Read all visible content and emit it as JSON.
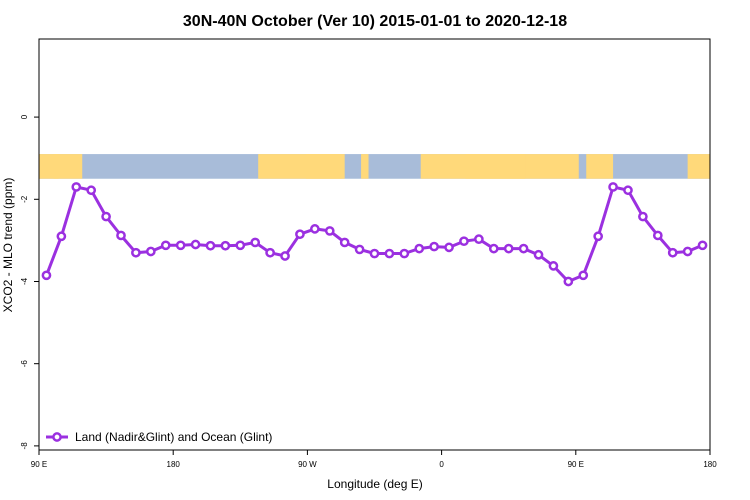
{
  "chart_data": {
    "type": "line",
    "title": "30N-40N October (Ver 10)   2015-01-01 to 2020-12-18",
    "xlabel": "Longitude (deg E)",
    "ylabel": "XCO2 - MLO trend (ppm)",
    "x_ticks": [
      {
        "value": 90,
        "label": "90 E"
      },
      {
        "value": 180,
        "label": "180"
      },
      {
        "value": 270,
        "label": "90 W"
      },
      {
        "value": 360,
        "label": "0"
      },
      {
        "value": 450,
        "label": "90 E"
      },
      {
        "value": 540,
        "label": "180"
      }
    ],
    "y_ticks": [
      0,
      -2,
      -4,
      -6,
      -8
    ],
    "xlim": [
      90,
      540
    ],
    "ylim": [
      -8.1,
      1.9
    ],
    "land_ocean_band": {
      "ymin": -1.5,
      "ymax": -0.9,
      "ocean_color": "#a8bcd9",
      "land_color": "#ffd97a",
      "land_segments": [
        [
          90,
          103
        ],
        [
          100,
          119
        ],
        [
          237,
          295
        ],
        [
          269,
          293
        ],
        [
          306,
          311
        ],
        [
          346,
          452
        ],
        [
          376,
          416
        ],
        [
          457,
          475
        ],
        [
          525,
          540
        ]
      ]
    },
    "series": [
      {
        "name": "Land (Nadir&Glint) and Ocean (Glint)",
        "color": "#9b30e0",
        "x": [
          95,
          105,
          115,
          125,
          135,
          145,
          155,
          165,
          175,
          185,
          195,
          205,
          215,
          225,
          235,
          245,
          255,
          265,
          275,
          285,
          295,
          305,
          315,
          325,
          335,
          345,
          355,
          365,
          375,
          385,
          395,
          405,
          415,
          425,
          435,
          445,
          455,
          465,
          475,
          485,
          495,
          505,
          515,
          525,
          535
        ],
        "y": [
          -3.85,
          -2.9,
          -1.7,
          -1.78,
          -2.42,
          -2.88,
          -3.3,
          -3.27,
          -3.12,
          -3.12,
          -3.1,
          -3.13,
          -3.13,
          -3.12,
          -3.05,
          -3.3,
          -3.38,
          -2.85,
          -2.72,
          -2.77,
          -3.05,
          -3.22,
          -3.32,
          -3.32,
          -3.32,
          -3.2,
          -3.15,
          -3.17,
          -3.02,
          -2.97,
          -3.2,
          -3.2,
          -3.2,
          -3.35,
          -3.62,
          -4.0,
          -3.85,
          -2.9,
          -1.7,
          -1.78,
          -2.42,
          -2.88,
          -3.3,
          -3.27,
          -3.12
        ]
      }
    ],
    "legend": {
      "position": "bottom-left",
      "label": "Land (Nadir&Glint) and Ocean (Glint)"
    },
    "grid": false
  }
}
